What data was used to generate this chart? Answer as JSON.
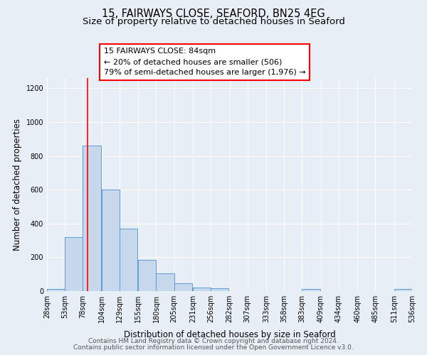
{
  "title": "15, FAIRWAYS CLOSE, SEAFORD, BN25 4EG",
  "subtitle": "Size of property relative to detached houses in Seaford",
  "xlabel": "Distribution of detached houses by size in Seaford",
  "ylabel": "Number of detached properties",
  "bar_left_edges": [
    28,
    53,
    78,
    104,
    129,
    155,
    180,
    205,
    231,
    256,
    282,
    307,
    333,
    358,
    383,
    409,
    434,
    460,
    485,
    511
  ],
  "bar_heights": [
    12,
    320,
    860,
    600,
    370,
    185,
    105,
    45,
    22,
    18,
    0,
    0,
    0,
    0,
    12,
    0,
    0,
    0,
    0,
    12
  ],
  "bin_width": 25,
  "bar_color": "#c8d8ec",
  "bar_edge_color": "#5b9bd5",
  "tick_labels": [
    "28sqm",
    "53sqm",
    "78sqm",
    "104sqm",
    "129sqm",
    "155sqm",
    "180sqm",
    "205sqm",
    "231sqm",
    "256sqm",
    "282sqm",
    "307sqm",
    "333sqm",
    "358sqm",
    "383sqm",
    "409sqm",
    "434sqm",
    "460sqm",
    "485sqm",
    "511sqm",
    "536sqm"
  ],
  "ylim": [
    0,
    1260
  ],
  "yticks": [
    0,
    200,
    400,
    600,
    800,
    1000,
    1200
  ],
  "red_line_x": 84,
  "annotation_title": "15 FAIRWAYS CLOSE: 84sqm",
  "annotation_line1": "← 20% of detached houses are smaller (506)",
  "annotation_line2": "79% of semi-detached houses are larger (1,976) →",
  "footer1": "Contains HM Land Registry data © Crown copyright and database right 2024.",
  "footer2": "Contains public sector information licensed under the Open Government Licence v3.0.",
  "background_color": "#e8eef6",
  "plot_bg_color": "#e8eef6",
  "grid_color": "#ffffff",
  "title_fontsize": 10.5,
  "subtitle_fontsize": 9.5,
  "axis_label_fontsize": 8.5,
  "tick_fontsize": 7,
  "footer_fontsize": 6.5
}
